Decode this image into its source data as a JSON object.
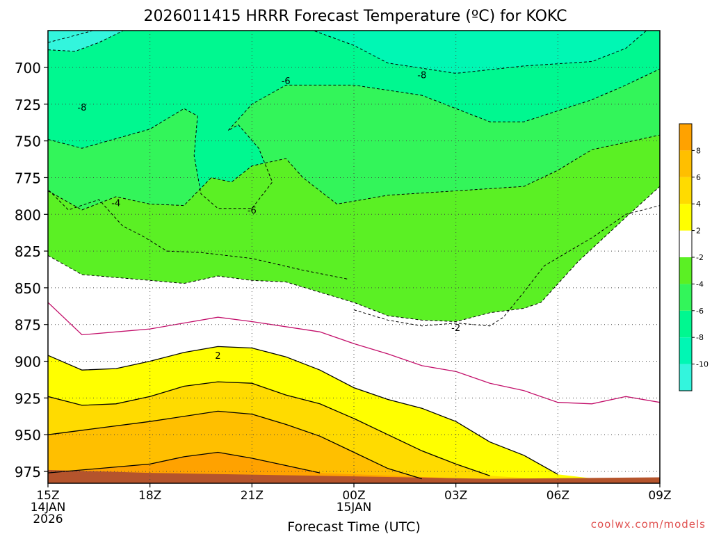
{
  "chart_data": {
    "type": "contour",
    "title": "2026011415 HRRR Forecast Temperature (ºC) for KOKC",
    "xlabel": "Forecast Time (UTC)",
    "ylabel": "",
    "x_ticks": [
      {
        "time": "2026-01-14T15:00Z",
        "lines": [
          "15Z",
          "14JAN",
          "2026"
        ]
      },
      {
        "time": "2026-01-14T18:00Z",
        "lines": [
          "18Z"
        ]
      },
      {
        "time": "2026-01-14T21:00Z",
        "lines": [
          "21Z"
        ]
      },
      {
        "time": "2026-01-15T00:00Z",
        "lines": [
          "00Z",
          "15JAN"
        ]
      },
      {
        "time": "2026-01-15T03:00Z",
        "lines": [
          "03Z"
        ]
      },
      {
        "time": "2026-01-15T06:00Z",
        "lines": [
          "06Z"
        ]
      },
      {
        "time": "2026-01-15T09:00Z",
        "lines": [
          "09Z"
        ]
      }
    ],
    "xlim": [
      "2026-01-14T15:00Z",
      "2026-01-15T09:00Z"
    ],
    "y_unit": "hPa",
    "y_ticks": [
      700,
      725,
      750,
      775,
      800,
      825,
      850,
      875,
      900,
      925,
      950,
      975
    ],
    "ylim": [
      678,
      983
    ],
    "grid": true,
    "colorbar": {
      "placement": "right",
      "levels": [
        -12,
        -10,
        -8,
        -6,
        -4,
        -2,
        2,
        4,
        6,
        8,
        10
      ],
      "labels": [
        "-10",
        "-8",
        "-6",
        "-4",
        "-2",
        "2",
        "4",
        "6",
        "8"
      ],
      "colors": [
        "#33f5dd",
        "#00f7b4",
        "#00f890",
        "#33f55a",
        "#5bf024",
        "#ffffff",
        "#ffff00",
        "#ffdb00",
        "#ffbf00",
        "#ffa200"
      ]
    },
    "contour_labels": [
      {
        "text": "-8",
        "time": "2026-01-14T16:00Z",
        "p": 727
      },
      {
        "text": "-6",
        "time": "2026-01-14T22:00Z",
        "p": 709
      },
      {
        "text": "-8",
        "time": "2026-01-15T02:00Z",
        "p": 705
      },
      {
        "text": "-4",
        "time": "2026-01-14T17:00Z",
        "p": 792
      },
      {
        "text": "-6",
        "time": "2026-01-14T21:00Z",
        "p": 797
      },
      {
        "text": "-2",
        "time": "2026-01-15T03:00Z",
        "p": 877
      },
      {
        "text": "2",
        "time": "2026-01-14T20:00Z",
        "p": 896
      }
    ],
    "series": [
      {
        "name": "-8",
        "points": [
          [
            0,
            683
          ],
          [
            1,
            677
          ],
          [
            3,
            664
          ],
          [
            5,
            667
          ],
          [
            7,
            668
          ],
          [
            9,
            685
          ],
          [
            10,
            697
          ],
          [
            12,
            704
          ],
          [
            14,
            699
          ],
          [
            16,
            696
          ],
          [
            17,
            687
          ],
          [
            18,
            667
          ]
        ]
      },
      {
        "name": "-10",
        "points": [
          [
            0,
            688
          ],
          [
            0.8,
            689
          ],
          [
            1.5,
            683
          ],
          [
            3,
            666
          ]
        ]
      },
      {
        "name": "-6",
        "points": [
          [
            0,
            749
          ],
          [
            1,
            755
          ],
          [
            3,
            742
          ],
          [
            4,
            728
          ],
          [
            4.4,
            733
          ],
          [
            4.3,
            760
          ],
          [
            4.5,
            786
          ],
          [
            5,
            796
          ],
          [
            6,
            796
          ],
          [
            6.6,
            778
          ],
          [
            6.2,
            755
          ],
          [
            5.6,
            739
          ],
          [
            5.3,
            743
          ],
          [
            6,
            725
          ],
          [
            7,
            712
          ],
          [
            9,
            712
          ],
          [
            11,
            719
          ],
          [
            13,
            737
          ],
          [
            14,
            737
          ],
          [
            16,
            722
          ],
          [
            17,
            712
          ],
          [
            18,
            701
          ]
        ]
      },
      {
        "name": "-4",
        "points": [
          [
            0,
            784
          ],
          [
            1,
            797
          ],
          [
            2,
            788
          ],
          [
            3,
            793
          ],
          [
            4,
            794
          ],
          [
            4.8,
            775
          ],
          [
            5.4,
            778
          ],
          [
            6,
            767
          ],
          [
            7,
            762
          ],
          [
            7.5,
            775
          ],
          [
            8.5,
            793
          ],
          [
            10,
            787
          ],
          [
            12,
            784
          ],
          [
            14,
            781
          ],
          [
            15,
            770
          ],
          [
            16,
            756
          ],
          [
            18,
            746
          ]
        ]
      },
      {
        "name": "-2",
        "points": [
          [
            0,
            828
          ],
          [
            1,
            841
          ],
          [
            3,
            845
          ],
          [
            4,
            847
          ],
          [
            5,
            842
          ],
          [
            6,
            845
          ],
          [
            7,
            846
          ],
          [
            9,
            860
          ],
          [
            10,
            869
          ],
          [
            11,
            872
          ],
          [
            12,
            873
          ],
          [
            13,
            867
          ],
          [
            14,
            864
          ],
          [
            14.5,
            860
          ],
          [
            15.6,
            832
          ],
          [
            17,
            802
          ],
          [
            18,
            781
          ]
        ]
      },
      {
        "name": "-4b",
        "points": [
          [
            9,
            865
          ],
          [
            10,
            872
          ],
          [
            11,
            876
          ],
          [
            12,
            874
          ],
          [
            13,
            876
          ],
          [
            13.4,
            870
          ],
          [
            14,
            853
          ],
          [
            14.6,
            835
          ],
          [
            16,
            816
          ],
          [
            17,
            800
          ],
          [
            18,
            794
          ]
        ]
      },
      {
        "name": "-2 (inner)",
        "points": [
          [
            8.8,
            844
          ],
          [
            7.5,
            838
          ],
          [
            6,
            830
          ],
          [
            4.5,
            826
          ],
          [
            3.5,
            825
          ],
          [
            2.8,
            815
          ],
          [
            2.2,
            808
          ],
          [
            1.5,
            790
          ],
          [
            0.6,
            797
          ],
          [
            0,
            783
          ]
        ]
      },
      {
        "name": "-2c",
        "points": [
          [
            0,
            860
          ],
          [
            1,
            882
          ],
          [
            2,
            880
          ],
          [
            3,
            878
          ],
          [
            4,
            874
          ],
          [
            5,
            870
          ],
          [
            6,
            873
          ],
          [
            8,
            880
          ],
          [
            9,
            888
          ],
          [
            10,
            895
          ],
          [
            11,
            903
          ],
          [
            12,
            907
          ],
          [
            13,
            915
          ],
          [
            14,
            920
          ],
          [
            15,
            928
          ],
          [
            16,
            929
          ],
          [
            17,
            924
          ],
          [
            18,
            928
          ]
        ]
      },
      {
        "name": "2",
        "points": [
          [
            0,
            896
          ],
          [
            1,
            906
          ],
          [
            2,
            905
          ],
          [
            3,
            900
          ],
          [
            4,
            894
          ],
          [
            5,
            890
          ],
          [
            6,
            891
          ],
          [
            7,
            897
          ],
          [
            8,
            906
          ],
          [
            9,
            918
          ],
          [
            10,
            926
          ],
          [
            11,
            932
          ],
          [
            12,
            941
          ],
          [
            13,
            955
          ],
          [
            14,
            964
          ],
          [
            15,
            977
          ]
        ]
      },
      {
        "name": "4",
        "points": [
          [
            0,
            924
          ],
          [
            1,
            930
          ],
          [
            2,
            929
          ],
          [
            3,
            924
          ],
          [
            4,
            917
          ],
          [
            5,
            914
          ],
          [
            6,
            915
          ],
          [
            7,
            923
          ],
          [
            8,
            929
          ],
          [
            9,
            939
          ],
          [
            10,
            950
          ],
          [
            11,
            961
          ],
          [
            12,
            970
          ],
          [
            13,
            978
          ]
        ]
      },
      {
        "name": "6",
        "points": [
          [
            0,
            950
          ],
          [
            1,
            947
          ],
          [
            3,
            941
          ],
          [
            5,
            934
          ],
          [
            6,
            936
          ],
          [
            7,
            943
          ],
          [
            8,
            951
          ],
          [
            9,
            962
          ],
          [
            10,
            973
          ],
          [
            11,
            980
          ]
        ]
      },
      {
        "name": "8",
        "points": [
          [
            0,
            976
          ],
          [
            1,
            974
          ],
          [
            3,
            970
          ],
          [
            4,
            965
          ],
          [
            5,
            962
          ],
          [
            6,
            966
          ],
          [
            7,
            971
          ],
          [
            8,
            976
          ]
        ]
      }
    ],
    "terrain_color": "#b5542c",
    "footer": "coolwx.com/models"
  }
}
